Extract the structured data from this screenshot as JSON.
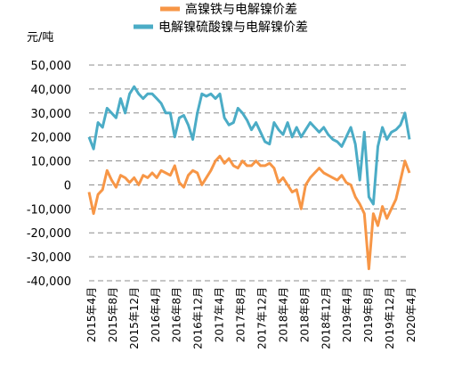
{
  "chart_data": {
    "type": "line",
    "unit_label": "元/吨",
    "ylim": [
      -40000,
      50000
    ],
    "y_ticks": [
      {
        "value": 50000,
        "label": "50,000"
      },
      {
        "value": 40000,
        "label": "40,000"
      },
      {
        "value": 30000,
        "label": "30,000"
      },
      {
        "value": 20000,
        "label": "20,000"
      },
      {
        "value": 10000,
        "label": "10,000"
      },
      {
        "value": 0,
        "label": "0"
      },
      {
        "value": -10000,
        "label": "-10,000"
      },
      {
        "value": -20000,
        "label": "-20,000"
      },
      {
        "value": -30000,
        "label": "-30,000"
      },
      {
        "value": -40000,
        "label": "-40,000"
      }
    ],
    "x_ticks": [
      "2015年4月",
      "2015年8月",
      "2015年12月",
      "2016年4月",
      "2016年8月",
      "2016年12月",
      "2017年4月",
      "2017年8月",
      "2017年12月",
      "2018年4月",
      "2018年8月",
      "2018年12月",
      "2019年4月",
      "2019年8月",
      "2019年12月",
      "2020年4月"
    ],
    "grid": "horizontal dashed",
    "legend_position": "top",
    "series": [
      {
        "name": "高镍铁与电解镍价差",
        "color": "#F79646",
        "values": [
          -3000,
          -12000,
          -4000,
          -2000,
          6000,
          2000,
          -1000,
          4000,
          3000,
          1000,
          3000,
          0,
          4000,
          3000,
          5000,
          3000,
          6000,
          5000,
          4000,
          8000,
          1000,
          -1000,
          4000,
          6000,
          5000,
          0,
          3000,
          6000,
          10000,
          12000,
          9000,
          11000,
          8000,
          7000,
          10000,
          8000,
          8000,
          10000,
          8000,
          8000,
          9000,
          7000,
          1000,
          3000,
          0,
          -3000,
          -2000,
          -10000,
          0,
          3000,
          5000,
          7000,
          5000,
          4000,
          3000,
          2000,
          4000,
          1000,
          0,
          -5000,
          -8000,
          -12000,
          -35000,
          -12000,
          -17000,
          -9000,
          -14000,
          -10000,
          -6000,
          2000,
          10000,
          5000
        ]
      },
      {
        "name": "电解镍硫酸镍与电解镍价差",
        "color": "#4BACC6",
        "values": [
          20000,
          15000,
          26000,
          24000,
          32000,
          30000,
          28000,
          36000,
          30000,
          38000,
          41000,
          38000,
          36000,
          38000,
          38000,
          36000,
          34000,
          30000,
          30000,
          20000,
          28000,
          29000,
          25000,
          19000,
          30000,
          38000,
          37000,
          38000,
          36000,
          38000,
          28000,
          25000,
          26000,
          32000,
          30000,
          27000,
          23000,
          26000,
          22000,
          18000,
          17000,
          26000,
          23000,
          21000,
          26000,
          20000,
          24000,
          20000,
          23000,
          26000,
          24000,
          22000,
          24000,
          21000,
          19000,
          18000,
          16000,
          20000,
          24000,
          17000,
          2000,
          22000,
          -5000,
          -8000,
          16000,
          24000,
          19000,
          22000,
          23000,
          25000,
          30000,
          19000
        ]
      }
    ]
  }
}
